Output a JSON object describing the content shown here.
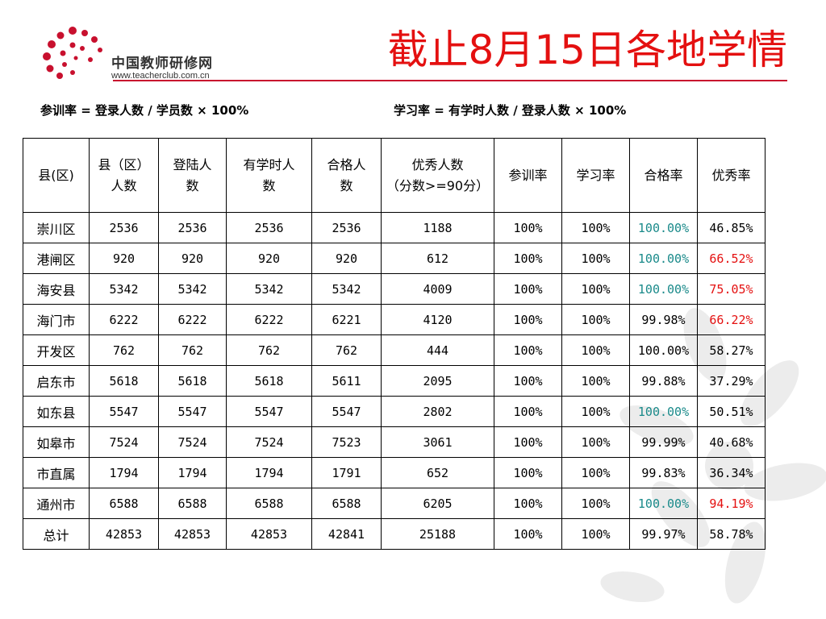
{
  "logo": {
    "cn": "中国教师研修网",
    "url": "www.teacherclub.com.cn"
  },
  "title": "截止8月15日各地学情",
  "formulas": {
    "participation": "参训率 = 登录人数 / 学员数 × 100%",
    "study": "学习率 = 有学时人数 / 登录人数 × 100%"
  },
  "colors": {
    "title": "#e41010",
    "teal": "#1a8a8a",
    "red": "#e41010",
    "default": "#000000"
  },
  "table": {
    "headers": [
      "县(区)",
      "县（区）人数",
      "登陆人数",
      "有学时人数",
      "合格人数",
      "优秀人数（分数>=90分）",
      "参训率",
      "学习率",
      "合格率",
      "优秀率"
    ],
    "rows": [
      {
        "name": "崇川区",
        "total": "2536",
        "login": "2536",
        "hours": "2536",
        "pass": "2536",
        "excellent": "1188",
        "part": "100%",
        "study": "100%",
        "pass_rate": "100.00%",
        "pass_color": "teal",
        "exc_rate": "46.85%",
        "exc_color": "default"
      },
      {
        "name": "港闸区",
        "total": "920",
        "login": "920",
        "hours": "920",
        "pass": "920",
        "excellent": "612",
        "part": "100%",
        "study": "100%",
        "pass_rate": "100.00%",
        "pass_color": "teal",
        "exc_rate": "66.52%",
        "exc_color": "red"
      },
      {
        "name": "海安县",
        "total": "5342",
        "login": "5342",
        "hours": "5342",
        "pass": "5342",
        "excellent": "4009",
        "part": "100%",
        "study": "100%",
        "pass_rate": "100.00%",
        "pass_color": "teal",
        "exc_rate": "75.05%",
        "exc_color": "red"
      },
      {
        "name": "海门市",
        "total": "6222",
        "login": "6222",
        "hours": "6222",
        "pass": "6221",
        "excellent": "4120",
        "part": "100%",
        "study": "100%",
        "pass_rate": "99.98%",
        "pass_color": "default",
        "exc_rate": "66.22%",
        "exc_color": "red"
      },
      {
        "name": "开发区",
        "total": "762",
        "login": "762",
        "hours": "762",
        "pass": "762",
        "excellent": "444",
        "part": "100%",
        "study": "100%",
        "pass_rate": "100.00%",
        "pass_color": "default",
        "exc_rate": "58.27%",
        "exc_color": "default"
      },
      {
        "name": "启东市",
        "total": "5618",
        "login": "5618",
        "hours": "5618",
        "pass": "5611",
        "excellent": "2095",
        "part": "100%",
        "study": "100%",
        "pass_rate": "99.88%",
        "pass_color": "default",
        "exc_rate": "37.29%",
        "exc_color": "default"
      },
      {
        "name": "如东县",
        "total": "5547",
        "login": "5547",
        "hours": "5547",
        "pass": "5547",
        "excellent": "2802",
        "part": "100%",
        "study": "100%",
        "pass_rate": "100.00%",
        "pass_color": "teal",
        "exc_rate": "50.51%",
        "exc_color": "default"
      },
      {
        "name": "如皋市",
        "total": "7524",
        "login": "7524",
        "hours": "7524",
        "pass": "7523",
        "excellent": "3061",
        "part": "100%",
        "study": "100%",
        "pass_rate": "99.99%",
        "pass_color": "default",
        "exc_rate": "40.68%",
        "exc_color": "default"
      },
      {
        "name": "市直属",
        "total": "1794",
        "login": "1794",
        "hours": "1794",
        "pass": "1791",
        "excellent": "652",
        "part": "100%",
        "study": "100%",
        "pass_rate": "99.83%",
        "pass_color": "default",
        "exc_rate": "36.34%",
        "exc_color": "default"
      },
      {
        "name": "通州市",
        "total": "6588",
        "login": "6588",
        "hours": "6588",
        "pass": "6588",
        "excellent": "6205",
        "part": "100%",
        "study": "100%",
        "pass_rate": "100.00%",
        "pass_color": "teal",
        "exc_rate": "94.19%",
        "exc_color": "red"
      },
      {
        "name": "总计",
        "total": "42853",
        "login": "42853",
        "hours": "42853",
        "pass": "42841",
        "excellent": "25188",
        "part": "100%",
        "study": "100%",
        "pass_rate": "99.97%",
        "pass_color": "default",
        "exc_rate": "58.78%",
        "exc_color": "default"
      }
    ]
  }
}
